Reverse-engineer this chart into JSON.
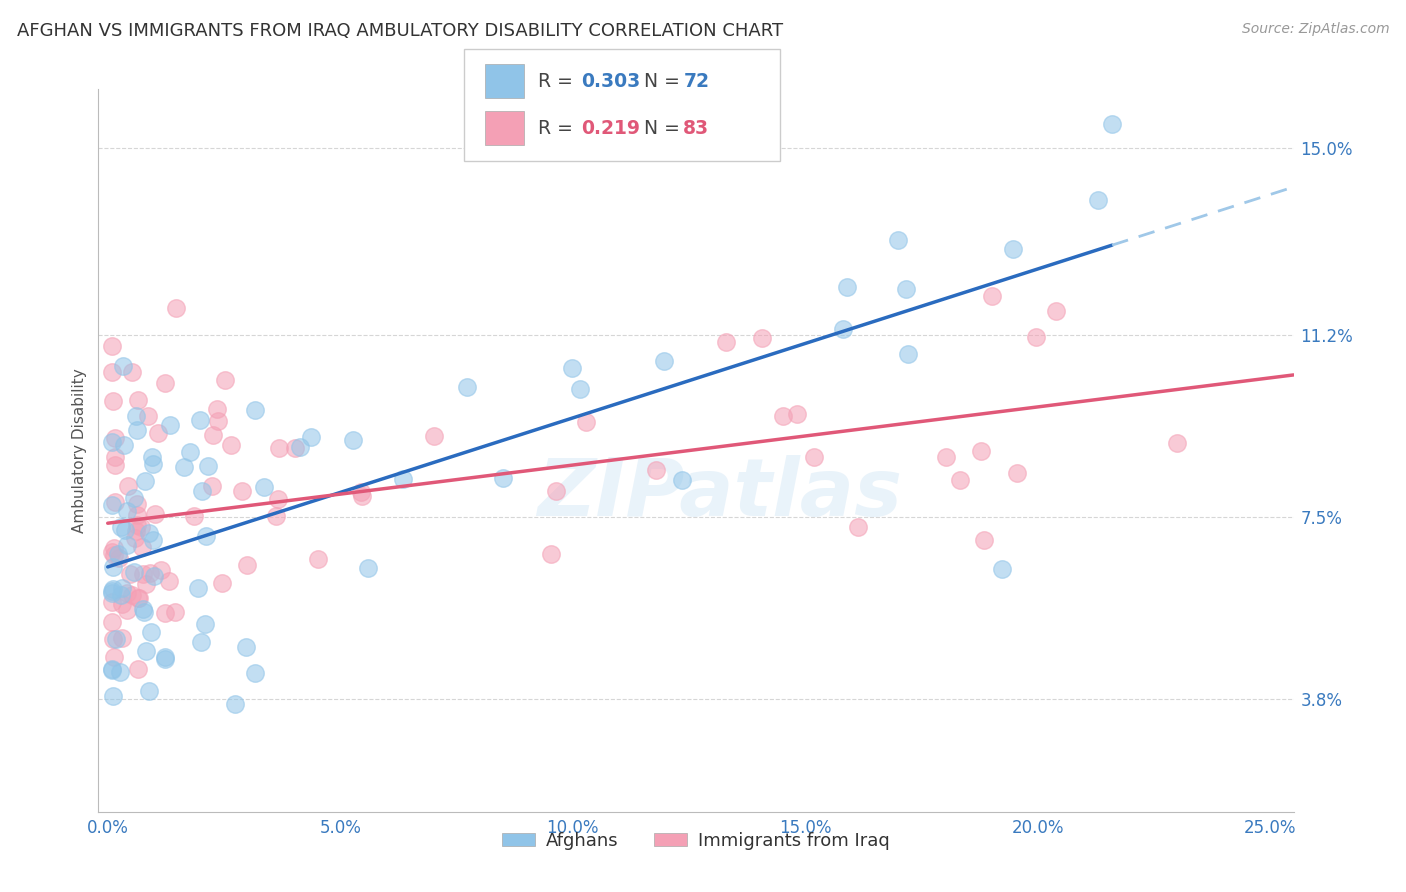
{
  "title": "AFGHAN VS IMMIGRANTS FROM IRAQ AMBULATORY DISABILITY CORRELATION CHART",
  "source": "Source: ZipAtlas.com",
  "ylabel": "Ambulatory Disability",
  "xlabel_ticks": [
    "0.0%",
    "5.0%",
    "10.0%",
    "15.0%",
    "20.0%",
    "25.0%"
  ],
  "xlabel_vals": [
    0.0,
    0.05,
    0.1,
    0.15,
    0.2,
    0.25
  ],
  "ylabel_ticks": [
    "3.8%",
    "7.5%",
    "11.2%",
    "15.0%"
  ],
  "ylabel_vals": [
    0.038,
    0.075,
    0.112,
    0.15
  ],
  "xlim": [
    -0.002,
    0.255
  ],
  "ylim": [
    0.015,
    0.162
  ],
  "legend_label1": "Afghans",
  "legend_label2": "Immigrants from Iraq",
  "R1": 0.303,
  "N1": 72,
  "R2": 0.219,
  "N2": 83,
  "blue_color": "#90c4e8",
  "pink_color": "#f4a0b5",
  "blue_line_color": "#2a6bbf",
  "blue_dash_color": "#a0c8e8",
  "pink_line_color": "#e05878",
  "background_color": "#ffffff",
  "grid_color": "#cccccc",
  "watermark": "ZIPatlas",
  "title_fontsize": 13,
  "axis_label_fontsize": 11,
  "tick_fontsize": 12,
  "source_fontsize": 10,
  "blue_R_color": "#3a7abf",
  "blue_N_color": "#3a7abf",
  "pink_R_color": "#e05878",
  "pink_N_color": "#e05878"
}
